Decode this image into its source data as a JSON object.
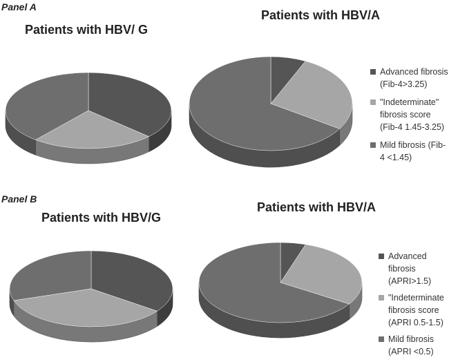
{
  "panels": [
    {
      "label": "Panel A",
      "legend": [
        {
          "label": "Advanced fibrosis\n(Fib-4>3.25)",
          "color": "#555555"
        },
        {
          "label": "\"Indeterminate\"\nfibrosis score\n(Fib-4  1.45-3.25)",
          "color": "#a6a6a6"
        },
        {
          "label": "Mild fibrosis (Fib-\n4 <1.45)",
          "color": "#6e6e6e"
        }
      ]
    },
    {
      "label": "Panel B",
      "legend": [
        {
          "label": "Advanced\nfibrosis\n(APRI>1.5)",
          "color": "#555555"
        },
        {
          "label": "\"Indeterminate\nfibrosis score\n(APRI  0.5-1.5)",
          "color": "#a6a6a6"
        },
        {
          "label": "Mild fibrosis\n(APRI <0.5)",
          "color": "#6e6e6e"
        }
      ]
    }
  ],
  "chart_data": [
    {
      "type": "pie",
      "panel": "Panel A",
      "title": "Patients with HBV/ G",
      "labels": [
        "Advanced fibrosis (Fib-4>3.25)",
        "\"Indeterminate\" fibrosis score (Fib-4 1.45-3.25)",
        "Mild fibrosis (Fib-4 <1.45)"
      ],
      "values": [
        37,
        24,
        39
      ],
      "colors": [
        "#555555",
        "#a6a6a6",
        "#6e6e6e"
      ]
    },
    {
      "type": "pie",
      "panel": "Panel A",
      "title": "Patients with HBV/A",
      "labels": [
        "Advanced fibrosis (Fib-4>3.25)",
        "\"Indeterminate\" fibrosis score (Fib-4 1.45-3.25)",
        "Mild fibrosis (Fib-4 <1.45)"
      ],
      "values": [
        7,
        27,
        66
      ],
      "colors": [
        "#555555",
        "#a6a6a6",
        "#6e6e6e"
      ]
    },
    {
      "type": "pie",
      "panel": "Panel B",
      "title": "Patients with HBV/G",
      "labels": [
        "Advanced fibrosis (APRI>1.5)",
        "\"Indeterminate fibrosis score (APRI 0.5-1.5)",
        "Mild fibrosis (APRI <0.5)"
      ],
      "values": [
        35,
        35,
        30
      ],
      "colors": [
        "#555555",
        "#a6a6a6",
        "#6e6e6e"
      ]
    },
    {
      "type": "pie",
      "panel": "Panel B",
      "title": "Patients with HBV/A",
      "labels": [
        "Advanced fibrosis (APRI>1.5)",
        "\"Indeterminate fibrosis score (APRI 0.5-1.5)",
        "Mild fibrosis (APRI <0.5)"
      ],
      "values": [
        5,
        29,
        66
      ],
      "colors": [
        "#555555",
        "#a6a6a6",
        "#6e6e6e"
      ]
    }
  ]
}
